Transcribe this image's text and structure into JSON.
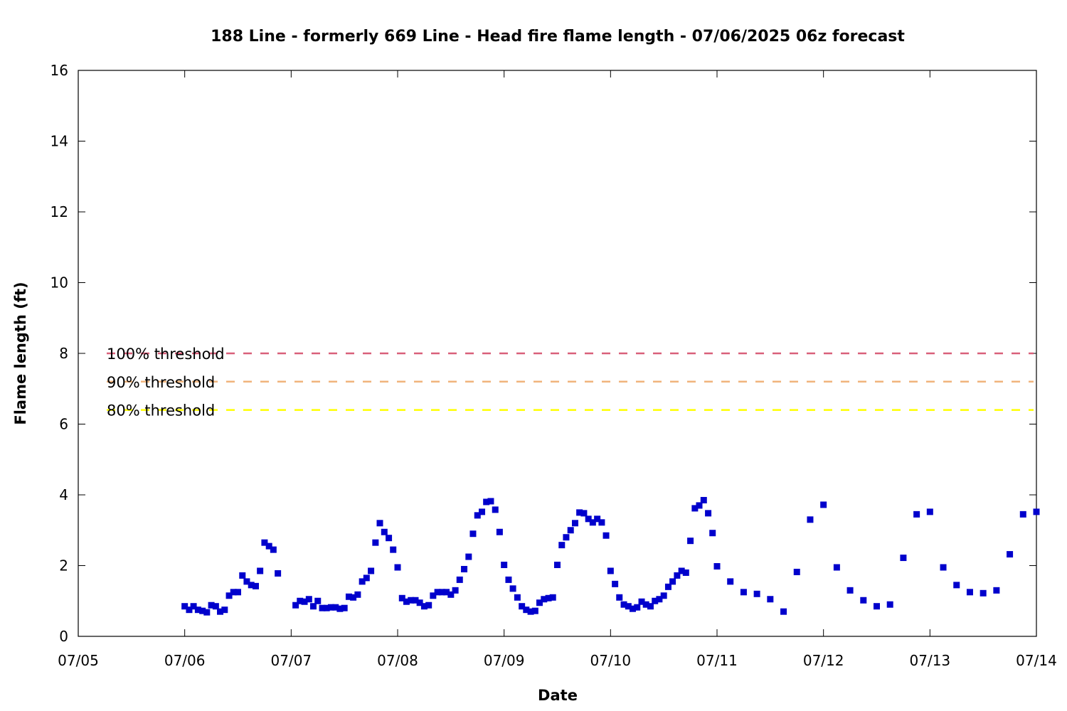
{
  "chart_data": {
    "type": "scatter",
    "title": "188 Line - formerly 669 Line - Head fire flame length - 07/06/2025 06z forecast",
    "xlabel": "Date",
    "ylabel": "Flame length (ft)",
    "x_tick_labels": [
      "07/05",
      "07/06",
      "07/07",
      "07/08",
      "07/09",
      "07/10",
      "07/11",
      "07/12",
      "07/13",
      "07/14"
    ],
    "y_tick_labels": [
      "0",
      "2",
      "4",
      "6",
      "8",
      "10",
      "12",
      "14",
      "16"
    ],
    "xlim_days": [
      0,
      9
    ],
    "ylim": [
      0,
      16
    ],
    "grid": false,
    "marker_color": "#0000cc",
    "thresholds": [
      {
        "label": "100% threshold",
        "value": 8.0,
        "color": "#d9607a"
      },
      {
        "label": "90% threshold",
        "value": 7.2,
        "color": "#f0b47c"
      },
      {
        "label": "80% threshold",
        "value": 6.4,
        "color": "#ffff00"
      }
    ],
    "series": [
      {
        "x": [
          "07/06 00:00",
          "07/06 01:00",
          "07/06 02:00",
          "07/06 03:00",
          "07/06 04:00",
          "07/06 05:00",
          "07/06 06:00",
          "07/06 07:00",
          "07/06 08:00",
          "07/06 09:00",
          "07/06 10:00",
          "07/06 11:00",
          "07/06 12:00",
          "07/06 13:00",
          "07/06 14:00",
          "07/06 15:00",
          "07/06 16:00",
          "07/06 17:00",
          "07/06 18:00",
          "07/06 19:00",
          "07/06 20:00",
          "07/06 21:00",
          "07/07 01:00",
          "07/07 02:00",
          "07/07 03:00",
          "07/07 04:00",
          "07/07 05:00",
          "07/07 06:00",
          "07/07 07:00",
          "07/07 08:00",
          "07/07 09:00",
          "07/07 10:00",
          "07/07 11:00",
          "07/07 12:00",
          "07/07 13:00",
          "07/07 14:00",
          "07/07 15:00",
          "07/07 16:00",
          "07/07 17:00",
          "07/07 18:00",
          "07/07 19:00",
          "07/07 20:00",
          "07/07 21:00",
          "07/07 22:00",
          "07/07 23:00",
          "07/08 00:00",
          "07/08 01:00",
          "07/08 02:00",
          "07/08 03:00",
          "07/08 04:00",
          "07/08 05:00",
          "07/08 06:00",
          "07/08 07:00",
          "07/08 08:00",
          "07/08 09:00",
          "07/08 10:00",
          "07/08 11:00",
          "07/08 12:00",
          "07/08 13:00",
          "07/08 14:00",
          "07/08 15:00",
          "07/08 16:00",
          "07/08 17:00",
          "07/08 18:00",
          "07/08 19:00",
          "07/08 20:00",
          "07/08 21:00",
          "07/08 22:00",
          "07/08 23:00",
          "07/09 00:00",
          "07/09 01:00",
          "07/09 02:00",
          "07/09 03:00",
          "07/09 04:00",
          "07/09 05:00",
          "07/09 06:00",
          "07/09 07:00",
          "07/09 08:00",
          "07/09 09:00",
          "07/09 10:00",
          "07/09 11:00",
          "07/09 12:00",
          "07/09 13:00",
          "07/09 14:00",
          "07/09 15:00",
          "07/09 16:00",
          "07/09 17:00",
          "07/09 18:00",
          "07/09 19:00",
          "07/09 20:00",
          "07/09 21:00",
          "07/09 22:00",
          "07/09 23:00",
          "07/10 00:00",
          "07/10 01:00",
          "07/10 02:00",
          "07/10 03:00",
          "07/10 04:00",
          "07/10 05:00",
          "07/10 06:00",
          "07/10 07:00",
          "07/10 08:00",
          "07/10 09:00",
          "07/10 10:00",
          "07/10 11:00",
          "07/10 12:00",
          "07/10 13:00",
          "07/10 14:00",
          "07/10 15:00",
          "07/10 16:00",
          "07/10 17:00",
          "07/10 18:00",
          "07/10 19:00",
          "07/10 20:00",
          "07/10 21:00",
          "07/10 22:00",
          "07/10 23:00",
          "07/11 00:00",
          "07/11 03:00",
          "07/11 06:00",
          "07/11 09:00",
          "07/11 12:00",
          "07/11 15:00",
          "07/11 18:00",
          "07/11 21:00",
          "07/12 00:00",
          "07/12 03:00",
          "07/12 06:00",
          "07/12 09:00",
          "07/12 12:00",
          "07/12 15:00",
          "07/12 18:00",
          "07/12 21:00",
          "07/13 00:00",
          "07/13 03:00",
          "07/13 06:00",
          "07/13 09:00",
          "07/13 12:00",
          "07/13 15:00",
          "07/13 18:00",
          "07/13 21:00",
          "07/14 00:00"
        ],
        "y": [
          0.85,
          0.75,
          0.85,
          0.75,
          0.72,
          0.68,
          0.88,
          0.85,
          0.7,
          0.75,
          1.15,
          1.25,
          1.25,
          1.72,
          1.55,
          1.45,
          1.42,
          1.85,
          2.65,
          2.55,
          2.45,
          1.78,
          0.88,
          1.0,
          0.98,
          1.05,
          0.85,
          1.0,
          0.8,
          0.8,
          0.82,
          0.82,
          0.78,
          0.8,
          1.12,
          1.1,
          1.18,
          1.55,
          1.65,
          1.85,
          2.65,
          3.2,
          2.95,
          2.78,
          2.45,
          1.95,
          1.08,
          0.98,
          1.02,
          1.02,
          0.95,
          0.85,
          0.88,
          1.15,
          1.25,
          1.25,
          1.25,
          1.18,
          1.3,
          1.6,
          1.9,
          2.25,
          2.9,
          3.42,
          3.52,
          3.8,
          3.82,
          3.58,
          2.95,
          2.02,
          1.6,
          1.35,
          1.1,
          0.85,
          0.75,
          0.7,
          0.72,
          0.95,
          1.05,
          1.08,
          1.1,
          2.02,
          2.58,
          2.8,
          3.0,
          3.2,
          3.5,
          3.48,
          3.32,
          3.22,
          3.32,
          3.22,
          2.85,
          1.85,
          1.48,
          1.1,
          0.9,
          0.85,
          0.78,
          0.82,
          0.98,
          0.9,
          0.85,
          1.0,
          1.05,
          1.15,
          1.4,
          1.55,
          1.72,
          1.85,
          1.8,
          2.7,
          3.62,
          3.7,
          3.85,
          3.48,
          2.92,
          1.98,
          1.55,
          1.25,
          1.2,
          1.05,
          0.7,
          1.82,
          3.3,
          3.72,
          1.95,
          1.3,
          1.02,
          0.85,
          0.9,
          2.22,
          3.45,
          3.52,
          1.95,
          1.45,
          1.25,
          1.22,
          1.3,
          2.32,
          3.45,
          3.52
        ]
      },
      {
        "note_days": [
          1.0,
          1.042,
          1.083,
          1.125,
          1.167,
          1.208,
          1.25,
          1.292,
          1.333,
          1.375,
          1.417,
          1.458,
          1.5,
          1.542,
          1.583,
          1.625,
          1.667,
          1.708,
          1.75,
          1.792,
          1.833,
          1.875,
          2.042,
          2.083,
          2.125,
          2.167,
          2.208,
          2.25,
          2.292,
          2.333,
          2.375,
          2.417,
          2.458,
          2.5,
          2.542,
          2.583,
          2.625,
          2.667,
          2.708,
          2.75,
          2.792,
          2.833,
          2.875,
          2.917,
          2.958,
          3.0,
          3.042,
          3.083,
          3.125,
          3.167,
          3.208,
          3.25,
          3.292,
          3.333,
          3.375,
          3.417,
          3.458,
          3.5,
          3.542,
          3.583,
          3.625,
          3.667,
          3.708,
          3.75,
          3.792,
          3.833,
          3.875,
          3.917,
          3.958,
          4.0,
          4.042,
          4.083,
          4.125,
          4.167,
          4.208,
          4.25,
          4.292,
          4.333,
          4.375,
          4.417,
          4.458,
          4.5,
          4.542,
          4.583,
          4.625,
          4.667,
          4.708,
          4.75,
          4.792,
          4.833,
          4.875,
          4.917,
          4.958,
          5.0,
          5.042,
          5.083,
          5.125,
          5.167,
          5.208,
          5.25,
          5.292,
          5.333,
          5.375,
          5.417,
          5.458,
          5.5,
          5.542,
          5.583,
          5.625,
          5.667,
          5.708,
          5.75,
          5.792,
          5.833,
          5.875,
          5.917,
          5.958,
          6.0,
          6.125,
          6.25,
          6.375,
          6.5,
          6.625,
          6.75,
          6.875,
          7.0,
          7.125,
          7.25,
          7.375,
          7.5,
          7.625,
          7.75,
          7.875,
          8.0,
          8.125,
          8.25,
          8.375,
          8.5,
          8.625,
          8.75,
          8.875,
          9.0
        ]
      }
    ]
  }
}
